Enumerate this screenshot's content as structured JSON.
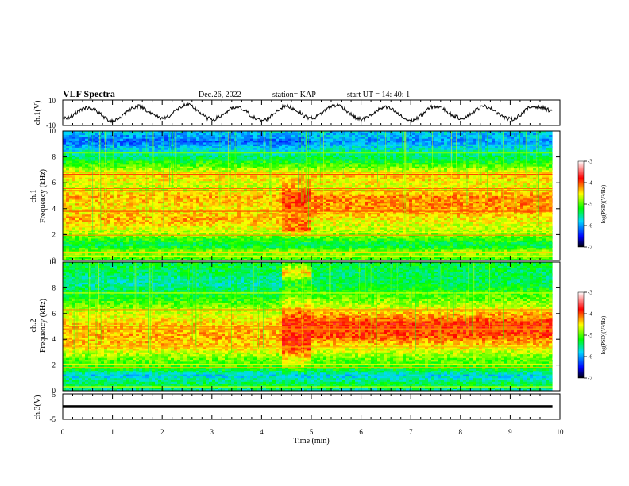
{
  "header": {
    "title": "VLF Spectra",
    "date": "Dec.26, 2022",
    "station": "station= KAP",
    "start": "start  UT  =   14: 40: 1"
  },
  "colors": {
    "colormap": [
      "#000000",
      "#0000ff",
      "#00d8ff",
      "#00ff00",
      "#ffff00",
      "#ff0000",
      "#ffffff"
    ]
  },
  "chart_data": [
    {
      "type": "line",
      "panel": "ch1-waveform",
      "ylabel": "ch.1(V)",
      "ylim": [
        -10,
        10
      ],
      "ytick_labels": [
        "-10",
        "10"
      ],
      "xlim": [
        0,
        10
      ],
      "x": [
        0,
        0.5,
        1,
        1.5,
        2,
        2.5,
        3,
        3.5,
        4,
        4.5,
        5,
        5.5,
        6,
        6.5,
        7,
        7.5,
        8,
        8.5,
        9,
        9.5,
        9.85
      ],
      "y": [
        -5,
        4,
        -6,
        5,
        -4,
        6,
        -5,
        4,
        -6,
        5,
        -4,
        6,
        -5,
        4,
        -6,
        5,
        -4,
        5,
        -5,
        5,
        2
      ],
      "style": "black noisy oscillating trace"
    },
    {
      "type": "heatmap",
      "panel": "ch1-spectrogram",
      "ylabel": "ch.1\nFrequency (kHz)",
      "xlim": [
        0,
        10
      ],
      "ylim": [
        0,
        10
      ],
      "ytick_labels": [
        "0",
        "2",
        "4",
        "6",
        "8",
        "10"
      ],
      "data_extent_min": 9.85,
      "colorbar": {
        "label": "log(PSD)(V²/Hz)",
        "range": [
          -7,
          -3
        ],
        "tick_labels": [
          "-3",
          "-4",
          "-5",
          "-6",
          "-7"
        ]
      },
      "x_segments": [
        0,
        4.4,
        4.95,
        9.85
      ],
      "frequency_profile": [
        [
          {
            "f": 0,
            "v": -5.1
          },
          {
            "f": 0.7,
            "v": -4.8
          },
          {
            "f": 1.2,
            "v": -5.4
          },
          {
            "f": 1.8,
            "v": -5.0
          },
          {
            "f": 2.4,
            "v": -4.6
          },
          {
            "f": 3.2,
            "v": -4.3
          },
          {
            "f": 4.0,
            "v": -4.5
          },
          {
            "f": 5.0,
            "v": -4.3
          },
          {
            "f": 5.6,
            "v": -4.7
          },
          {
            "f": 6.6,
            "v": -4.4
          },
          {
            "f": 7.2,
            "v": -4.9
          },
          {
            "f": 7.8,
            "v": -5.3
          },
          {
            "f": 8.5,
            "v": -5.7
          },
          {
            "f": 9.2,
            "v": -6.2
          },
          {
            "f": 10,
            "v": -5.8
          }
        ],
        [
          {
            "f": 0,
            "v": -5.1
          },
          {
            "f": 0.7,
            "v": -4.8
          },
          {
            "f": 1.2,
            "v": -5.4
          },
          {
            "f": 1.8,
            "v": -5.0
          },
          {
            "f": 2.4,
            "v": -4.1
          },
          {
            "f": 3.2,
            "v": -4.2
          },
          {
            "f": 4.0,
            "v": -4.1
          },
          {
            "f": 5.0,
            "v": -3.9
          },
          {
            "f": 5.6,
            "v": -4.3
          },
          {
            "f": 6.6,
            "v": -4.4
          },
          {
            "f": 7.2,
            "v": -4.9
          },
          {
            "f": 7.8,
            "v": -5.3
          },
          {
            "f": 8.5,
            "v": -5.7
          },
          {
            "f": 9.2,
            "v": -6.2
          },
          {
            "f": 10,
            "v": -5.8
          }
        ],
        [
          {
            "f": 0,
            "v": -5.1
          },
          {
            "f": 0.7,
            "v": -4.8
          },
          {
            "f": 1.2,
            "v": -5.4
          },
          {
            "f": 1.8,
            "v": -5.0
          },
          {
            "f": 2.4,
            "v": -4.7
          },
          {
            "f": 3.2,
            "v": -4.5
          },
          {
            "f": 4.0,
            "v": -4.2
          },
          {
            "f": 5.0,
            "v": -4.2
          },
          {
            "f": 5.6,
            "v": -4.6
          },
          {
            "f": 6.6,
            "v": -4.4
          },
          {
            "f": 7.2,
            "v": -4.9
          },
          {
            "f": 7.8,
            "v": -5.3
          },
          {
            "f": 8.5,
            "v": -5.6
          },
          {
            "f": 9.2,
            "v": -6.0
          },
          {
            "f": 10,
            "v": -5.8
          }
        ]
      ],
      "lines": [
        {
          "f": 0.35,
          "v": -4.6
        },
        {
          "f": 0.65,
          "v": -4.4
        },
        {
          "f": 1.95,
          "v": -4.2
        },
        {
          "f": 2.15,
          "v": -4.5
        },
        {
          "f": 3.8,
          "v": -4.0
        },
        {
          "f": 4.2,
          "v": -4.2
        },
        {
          "f": 5.4,
          "v": -4.0
        },
        {
          "f": 5.55,
          "v": -4.1
        },
        {
          "f": 6.65,
          "v": -4.0
        },
        {
          "f": 6.8,
          "v": -4.3
        },
        {
          "f": 8.3,
          "v": -4.9
        }
      ]
    },
    {
      "type": "heatmap",
      "panel": "ch2-spectrogram",
      "ylabel": "ch.2\nFrequency (kHz)",
      "xlim": [
        0,
        10
      ],
      "ylim": [
        0,
        10
      ],
      "ytick_labels": [
        "0",
        "2",
        "4",
        "6",
        "8",
        "10"
      ],
      "data_extent_min": 9.85,
      "colorbar": {
        "label": "log(PSD)(V²/Hz)",
        "range": [
          -7,
          -3
        ],
        "tick_labels": [
          "-3",
          "-4",
          "-5",
          "-6",
          "-7"
        ]
      },
      "x_segments": [
        0,
        4.4,
        4.95,
        9.85
      ],
      "frequency_profile": [
        [
          {
            "f": 0,
            "v": -5.6
          },
          {
            "f": 0.5,
            "v": -5.3
          },
          {
            "f": 1.2,
            "v": -5.8
          },
          {
            "f": 1.8,
            "v": -5.1
          },
          {
            "f": 2.6,
            "v": -4.9
          },
          {
            "f": 3.4,
            "v": -4.4
          },
          {
            "f": 4.3,
            "v": -4.3
          },
          {
            "f": 5.2,
            "v": -4.4
          },
          {
            "f": 6.0,
            "v": -4.6
          },
          {
            "f": 6.8,
            "v": -5.0
          },
          {
            "f": 7.6,
            "v": -5.3
          },
          {
            "f": 8.4,
            "v": -5.6
          },
          {
            "f": 9.2,
            "v": -5.4
          },
          {
            "f": 10,
            "v": -5.3
          }
        ],
        [
          {
            "f": 0,
            "v": -5.6
          },
          {
            "f": 0.5,
            "v": -5.3
          },
          {
            "f": 1.2,
            "v": -5.8
          },
          {
            "f": 1.8,
            "v": -4.9
          },
          {
            "f": 2.6,
            "v": -4.4
          },
          {
            "f": 3.4,
            "v": -3.9
          },
          {
            "f": 4.3,
            "v": -3.9
          },
          {
            "f": 5.2,
            "v": -3.9
          },
          {
            "f": 6.0,
            "v": -4.1
          },
          {
            "f": 6.8,
            "v": -4.6
          },
          {
            "f": 7.6,
            "v": -5.0
          },
          {
            "f": 8.4,
            "v": -5.2
          },
          {
            "f": 9.2,
            "v": -4.4
          },
          {
            "f": 10,
            "v": -5.1
          }
        ],
        [
          {
            "f": 0,
            "v": -5.6
          },
          {
            "f": 0.5,
            "v": -5.3
          },
          {
            "f": 1.2,
            "v": -5.8
          },
          {
            "f": 1.8,
            "v": -5.1
          },
          {
            "f": 2.6,
            "v": -4.9
          },
          {
            "f": 3.4,
            "v": -4.5
          },
          {
            "f": 4.3,
            "v": -4.0
          },
          {
            "f": 5.2,
            "v": -3.9
          },
          {
            "f": 6.0,
            "v": -4.3
          },
          {
            "f": 6.8,
            "v": -4.8
          },
          {
            "f": 7.6,
            "v": -5.1
          },
          {
            "f": 8.4,
            "v": -5.4
          },
          {
            "f": 9.2,
            "v": -5.4
          },
          {
            "f": 10,
            "v": -5.3
          }
        ]
      ],
      "lines": [
        {
          "f": 0.3,
          "v": -4.6
        },
        {
          "f": 1.8,
          "v": -4.3
        },
        {
          "f": 2.05,
          "v": -4.5
        },
        {
          "f": 3.4,
          "v": -4.3
        },
        {
          "f": 4.8,
          "v": -4.2
        },
        {
          "f": 5.0,
          "v": -4.1
        },
        {
          "f": 6.3,
          "v": -4.2
        },
        {
          "f": 7.6,
          "v": -4.6
        }
      ]
    },
    {
      "type": "line",
      "panel": "ch3-waveform",
      "ylabel": "ch.3(V)",
      "ylim": [
        -5,
        5
      ],
      "ytick_labels": [
        "-5",
        "5"
      ],
      "xlim": [
        0,
        10
      ],
      "x": [
        0,
        9.85
      ],
      "y": [
        0,
        0
      ],
      "style": "thick black band of constant amplitude, roughly -0.5 to 0.5 V",
      "xlabel": "Time (min)",
      "xtick_labels": [
        "0",
        "1",
        "2",
        "3",
        "4",
        "5",
        "6",
        "7",
        "8",
        "9",
        "10"
      ]
    }
  ]
}
